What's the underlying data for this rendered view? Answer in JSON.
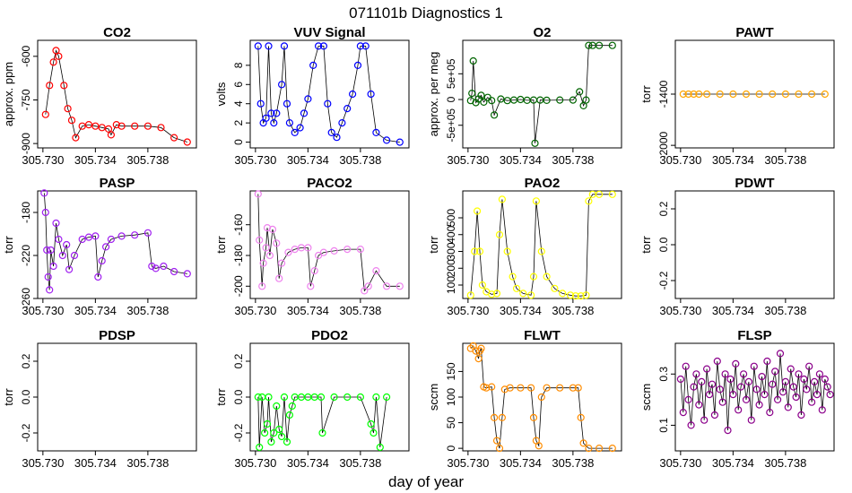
{
  "figure": {
    "title": "071101b   Diagnostics 1",
    "xlabel": "day of year"
  },
  "colors": {
    "red": "#ff0000",
    "blue": "#0000ff",
    "darkgreen": "#006400",
    "orange": "#ffa500",
    "purple": "#a020f0",
    "violet": "#ee82ee",
    "yellow": "#ffff00",
    "green": "#00ff00",
    "darkorange": "#ff8c00",
    "darkmagenta": "#8b008b"
  },
  "chart_data": [
    {
      "type": "scatter",
      "id": "co2",
      "title": "CO2",
      "ylabel": "approx. ppm",
      "color": "red",
      "xlim": [
        305.7296,
        305.7417
      ],
      "ylim": [
        -915,
        -545
      ],
      "yticks": [
        -900,
        -750,
        -600
      ],
      "xticks": [
        305.73,
        305.734,
        305.738
      ],
      "xtick_labels": [
        "305.730",
        "305.734",
        "305.738"
      ],
      "x": [
        305.7302,
        305.7305,
        305.7308,
        305.731,
        305.7312,
        305.7316,
        305.7319,
        305.7322,
        305.7325,
        305.733,
        305.7335,
        305.734,
        305.7345,
        305.735,
        305.7352,
        305.7356,
        305.736,
        305.737,
        305.738,
        305.739,
        305.74,
        305.741
      ],
      "y": [
        -800,
        -700,
        -620,
        -580,
        -600,
        -700,
        -780,
        -820,
        -880,
        -840,
        -835,
        -840,
        -845,
        -850,
        -870,
        -835,
        -840,
        -840,
        -840,
        -845,
        -880,
        -895
      ]
    },
    {
      "type": "scatter",
      "id": "vuv",
      "title": "VUV Signal",
      "ylabel": "volts",
      "color": "blue",
      "xlim": [
        305.7296,
        305.7417
      ],
      "ylim": [
        -0.6,
        10.6
      ],
      "yticks": [
        0,
        2,
        4,
        6,
        8
      ],
      "xticks": [
        305.73,
        305.734,
        305.738
      ],
      "xtick_labels": [
        "305.730",
        "305.734",
        "305.738"
      ],
      "x": [
        305.7302,
        305.7304,
        305.7306,
        305.7308,
        305.731,
        305.7312,
        305.7314,
        305.7316,
        305.732,
        305.7322,
        305.7324,
        305.7326,
        305.733,
        305.7334,
        305.7337,
        305.734,
        305.7344,
        305.7348,
        305.7352,
        305.7355,
        305.7358,
        305.7362,
        305.7366,
        305.737,
        305.7374,
        305.7378,
        305.738,
        305.7384,
        305.7388,
        305.7392,
        305.74,
        305.741
      ],
      "y": [
        10,
        4,
        2,
        2.5,
        10,
        3,
        2,
        3,
        6,
        10,
        4,
        2,
        1,
        1.5,
        3,
        4.5,
        8,
        10,
        10,
        4,
        1,
        0.5,
        2,
        3.5,
        5,
        8,
        10,
        10,
        5,
        1,
        0.2,
        0
      ]
    },
    {
      "type": "scatter",
      "id": "o2",
      "title": "O2",
      "ylabel": "approx. per meg",
      "color": "darkgreen",
      "xlim": [
        305.7296,
        305.7417
      ],
      "ylim": [
        -940000,
        1150000
      ],
      "yticks": [
        -500000,
        0,
        500000
      ],
      "ytick_labels": [
        "-5e+05",
        "0",
        "5e+05"
      ],
      "xticks": [
        305.73,
        305.734,
        305.738
      ],
      "xtick_labels": [
        "305.730",
        "305.734",
        "305.738"
      ],
      "x": [
        305.7302,
        305.7303,
        305.7304,
        305.7306,
        305.7308,
        305.731,
        305.7312,
        305.7315,
        305.7318,
        305.732,
        305.7325,
        305.733,
        305.7335,
        305.734,
        305.7345,
        305.735,
        305.7351,
        305.7355,
        305.736,
        305.737,
        305.738,
        305.7385,
        305.7388,
        305.739,
        305.7392,
        305.7395,
        305.74,
        305.741
      ],
      "y": [
        -20000,
        120000,
        750000,
        -60000,
        10000,
        80000,
        -50000,
        40000,
        -20000,
        -300000,
        10000,
        -20000,
        -10000,
        0,
        -15000,
        -10000,
        -850000,
        -10000,
        -15000,
        -10000,
        -10000,
        150000,
        -120000,
        -10000,
        1050000,
        1050000,
        1050000,
        1050000
      ]
    },
    {
      "type": "scatter",
      "id": "pawt",
      "title": "PAWT",
      "ylabel": "torr",
      "color": "orange",
      "xlim": [
        305.7296,
        305.7417
      ],
      "ylim": [
        -2030,
        -770
      ],
      "yticks": [
        -2000,
        -1400
      ],
      "xticks": [
        305.73,
        305.734,
        305.738
      ],
      "xtick_labels": [
        "305.730",
        "305.734",
        "305.738"
      ],
      "x": [
        305.7302,
        305.7306,
        305.731,
        305.7314,
        305.732,
        305.733,
        305.734,
        305.735,
        305.736,
        305.737,
        305.738,
        305.739,
        305.74,
        305.741
      ],
      "y": [
        -1400,
        -1400,
        -1400,
        -1400,
        -1400,
        -1400,
        -1400,
        -1400,
        -1400,
        -1400,
        -1400,
        -1400,
        -1400,
        -1400
      ]
    },
    {
      "type": "scatter",
      "id": "pasp",
      "title": "PASP",
      "ylabel": "torr",
      "color": "purple",
      "xlim": [
        305.7296,
        305.7417
      ],
      "ylim": [
        -260,
        -160
      ],
      "yticks": [
        -260,
        -220,
        -180
      ],
      "xticks": [
        305.73,
        305.734,
        305.738
      ],
      "xtick_labels": [
        "305.730",
        "305.734",
        "305.738"
      ],
      "x": [
        305.7301,
        305.7302,
        305.7303,
        305.7304,
        305.7305,
        305.7306,
        305.7308,
        305.731,
        305.7312,
        305.7315,
        305.7318,
        305.732,
        305.7324,
        305.733,
        305.7335,
        305.734,
        305.7342,
        305.7345,
        305.7348,
        305.7352,
        305.736,
        305.737,
        305.738,
        305.7383,
        305.7386,
        305.7392,
        305.74,
        305.741
      ],
      "y": [
        -162,
        -180,
        -215,
        -240,
        -252,
        -215,
        -230,
        -190,
        -205,
        -220,
        -210,
        -233,
        -220,
        -205,
        -203,
        -202,
        -240,
        -225,
        -212,
        -205,
        -202,
        -201,
        -199,
        -230,
        -232,
        -230,
        -235,
        -237
      ]
    },
    {
      "type": "scatter",
      "id": "paco2",
      "title": "PACO2",
      "ylabel": "torr",
      "color": "violet",
      "xlim": [
        305.7296,
        305.7417
      ],
      "ylim": [
        -208,
        -138
      ],
      "yticks": [
        -200,
        -180,
        -160
      ],
      "xticks": [
        305.73,
        305.734,
        305.738
      ],
      "xtick_labels": [
        "305.730",
        "305.734",
        "305.738"
      ],
      "x": [
        305.7302,
        305.7303,
        305.7305,
        305.7306,
        305.7308,
        305.7309,
        305.7311,
        305.7313,
        305.7316,
        305.7318,
        305.732,
        305.7325,
        305.733,
        305.7335,
        305.734,
        305.7342,
        305.7345,
        305.7348,
        305.7352,
        305.736,
        305.737,
        305.738,
        305.7383,
        305.7386,
        305.7392,
        305.74,
        305.741
      ],
      "y": [
        -140,
        -170,
        -200,
        -185,
        -175,
        -162,
        -180,
        -163,
        -172,
        -195,
        -185,
        -178,
        -176,
        -175,
        -175,
        -200,
        -190,
        -180,
        -178,
        -177,
        -176,
        -176,
        -203,
        -200,
        -190,
        -200,
        -200
      ]
    },
    {
      "type": "scatter",
      "id": "pao2",
      "title": "PAO2",
      "ylabel": "torr",
      "color": "yellow",
      "xlim": [
        305.7296,
        305.7417
      ],
      "ylim": [
        20,
        660
      ],
      "yticks": [
        100,
        200,
        300,
        400,
        500
      ],
      "xticks": [
        305.73,
        305.734,
        305.738
      ],
      "xtick_labels": [
        "305.730",
        "305.734",
        "305.738"
      ],
      "x": [
        305.7302,
        305.7305,
        305.7307,
        305.7309,
        305.7311,
        305.7314,
        305.7318,
        305.7322,
        305.7324,
        305.7326,
        305.733,
        305.7334,
        305.7337,
        305.7342,
        305.7348,
        305.735,
        305.7352,
        305.7356,
        305.736,
        305.7366,
        305.7372,
        305.7378,
        305.7382,
        305.7386,
        305.739,
        305.7392,
        305.7395,
        305.74,
        305.741
      ],
      "y": [
        40,
        300,
        540,
        300,
        100,
        60,
        45,
        50,
        400,
        610,
        300,
        150,
        80,
        50,
        40,
        150,
        600,
        300,
        150,
        80,
        50,
        40,
        35,
        35,
        40,
        600,
        640,
        640,
        640
      ]
    },
    {
      "type": "scatter",
      "id": "pdwt",
      "title": "PDWT",
      "ylabel": "torr",
      "color": "purple",
      "xlim": [
        305.7296,
        305.7417
      ],
      "ylim": [
        -0.3,
        0.3
      ],
      "yticks": [
        -0.2,
        0.0,
        0.2
      ],
      "ytick_labels": [
        "-0.2",
        "0.0",
        "0.2"
      ],
      "xticks": [
        305.73,
        305.734,
        305.738
      ],
      "xtick_labels": [
        "305.730",
        "305.734",
        "305.738"
      ],
      "x": [],
      "y": []
    },
    {
      "type": "scatter",
      "id": "pdsp",
      "title": "PDSP",
      "ylabel": "torr",
      "color": "purple",
      "xlim": [
        305.7296,
        305.7417
      ],
      "ylim": [
        -0.3,
        0.3
      ],
      "yticks": [
        -0.2,
        0.0,
        0.2
      ],
      "ytick_labels": [
        "-0.2",
        "0.0",
        "0.2"
      ],
      "xticks": [
        305.73,
        305.734,
        305.738
      ],
      "xtick_labels": [
        "305.730",
        "305.734",
        "305.738"
      ],
      "x": [],
      "y": []
    },
    {
      "type": "scatter",
      "id": "pdo2",
      "title": "PDO2",
      "ylabel": "torr",
      "color": "green",
      "xlim": [
        305.7296,
        305.7417
      ],
      "ylim": [
        -0.3,
        0.3
      ],
      "yticks": [
        -0.2,
        0.0,
        0.2
      ],
      "ytick_labels": [
        "-0.2",
        "0.0",
        "0.2"
      ],
      "xticks": [
        305.73,
        305.734,
        305.738
      ],
      "xtick_labels": [
        "305.730",
        "305.734",
        "305.738"
      ],
      "x": [
        305.7302,
        305.7303,
        305.7305,
        305.7307,
        305.7309,
        305.731,
        305.7312,
        305.7314,
        305.7316,
        305.7318,
        305.732,
        305.7322,
        305.7324,
        305.7326,
        305.7328,
        305.733,
        305.7335,
        305.734,
        305.7345,
        305.735,
        305.7351,
        305.736,
        305.737,
        305.738,
        305.7388,
        305.739,
        305.7392,
        305.7395,
        305.74
      ],
      "y": [
        0.0,
        -0.28,
        0.0,
        -0.2,
        -0.15,
        0.0,
        -0.25,
        -0.2,
        -0.05,
        -0.18,
        -0.22,
        0.0,
        -0.25,
        -0.1,
        -0.05,
        0.0,
        0.0,
        0.0,
        0.0,
        0.0,
        -0.2,
        0.0,
        0.0,
        0.0,
        -0.15,
        -0.2,
        0.0,
        -0.28,
        0.0
      ]
    },
    {
      "type": "scatter",
      "id": "flwt",
      "title": "FLWT",
      "ylabel": "sccm",
      "color": "darkorange",
      "xlim": [
        305.7296,
        305.7417
      ],
      "ylim": [
        -5,
        205
      ],
      "yticks": [
        0,
        50,
        100,
        150
      ],
      "xticks": [
        305.73,
        305.734,
        305.738
      ],
      "xtick_labels": [
        "305.730",
        "305.734",
        "305.738"
      ],
      "x": [
        305.7302,
        305.7304,
        305.7306,
        305.7308,
        305.7309,
        305.731,
        305.7312,
        305.7314,
        305.7318,
        305.732,
        305.7322,
        305.7324,
        305.7326,
        305.7328,
        305.7332,
        305.734,
        305.7348,
        305.735,
        305.7352,
        305.7354,
        305.7356,
        305.736,
        305.737,
        305.738,
        305.7384,
        305.7386,
        305.7388,
        305.7392,
        305.74,
        305.741
      ],
      "y": [
        195,
        200,
        190,
        175,
        190,
        195,
        120,
        118,
        120,
        60,
        15,
        0,
        60,
        115,
        118,
        118,
        118,
        60,
        15,
        5,
        100,
        118,
        118,
        118,
        118,
        60,
        10,
        0,
        0,
        0
      ]
    },
    {
      "type": "scatter",
      "id": "flsp",
      "title": "FLSP",
      "ylabel": "sccm",
      "color": "darkmagenta",
      "xlim": [
        305.7296,
        305.7417
      ],
      "ylim": [
        0.0,
        0.42
      ],
      "yticks": [
        0.1,
        0.3
      ],
      "xticks": [
        305.73,
        305.734,
        305.738
      ],
      "xtick_labels": [
        "305.730",
        "305.734",
        "305.738"
      ],
      "x": [
        305.73,
        305.7302,
        305.7304,
        305.7306,
        305.7308,
        305.731,
        305.7312,
        305.7314,
        305.7316,
        305.7318,
        305.732,
        305.7322,
        305.7324,
        305.7326,
        305.7328,
        305.733,
        305.7332,
        305.7334,
        305.7336,
        305.7338,
        305.734,
        305.7342,
        305.7344,
        305.7346,
        305.7348,
        305.735,
        305.7352,
        305.7354,
        305.7356,
        305.7358,
        305.736,
        305.7362,
        305.7364,
        305.7366,
        305.7368,
        305.737,
        305.7372,
        305.7374,
        305.7376,
        305.7378,
        305.738,
        305.7382,
        305.7384,
        305.7386,
        305.7388,
        305.739,
        305.7392,
        305.7394,
        305.7396,
        305.7398,
        305.74,
        305.7402,
        305.7404,
        305.7406,
        305.7408,
        305.741,
        305.7412,
        305.7414
      ],
      "y": [
        0.28,
        0.15,
        0.33,
        0.2,
        0.1,
        0.25,
        0.3,
        0.18,
        0.27,
        0.12,
        0.32,
        0.22,
        0.26,
        0.14,
        0.35,
        0.24,
        0.19,
        0.3,
        0.08,
        0.28,
        0.22,
        0.34,
        0.16,
        0.25,
        0.3,
        0.2,
        0.27,
        0.12,
        0.33,
        0.24,
        0.18,
        0.29,
        0.22,
        0.35,
        0.15,
        0.26,
        0.31,
        0.2,
        0.38,
        0.23,
        0.27,
        0.17,
        0.32,
        0.25,
        0.21,
        0.3,
        0.14,
        0.28,
        0.24,
        0.33,
        0.19,
        0.27,
        0.22,
        0.3,
        0.16,
        0.28,
        0.25,
        0.22
      ]
    }
  ]
}
